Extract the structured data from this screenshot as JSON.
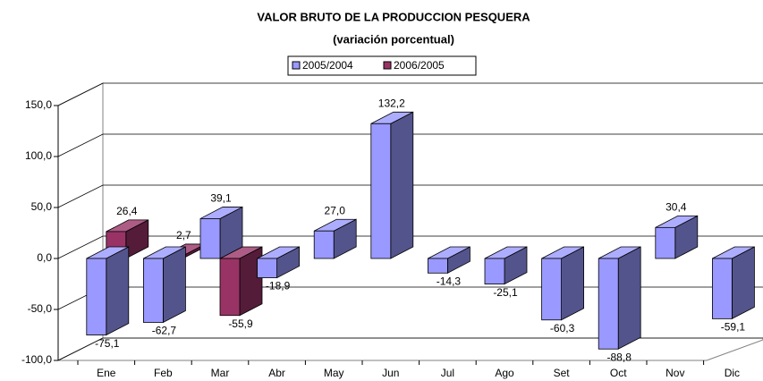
{
  "chart_data": {
    "type": "bar3d",
    "title": "VALOR BRUTO DE LA PRODUCCION PESQUERA",
    "subtitle": "(variación porcentual)",
    "categories": [
      "Ene",
      "Feb",
      "Mar",
      "Abr",
      "May",
      "Jun",
      "Jul",
      "Ago",
      "Set",
      "Oct",
      "Nov",
      "Dic"
    ],
    "series": [
      {
        "name": "2005/2004",
        "color": "#9999ff",
        "values": [
          -75.1,
          -62.7,
          39.1,
          -18.9,
          27.0,
          132.2,
          -14.3,
          -25.1,
          -60.3,
          -88.8,
          30.4,
          -59.1
        ],
        "value_labels": [
          "-75,1",
          "-62,7",
          "39,1",
          "-18,9",
          "27,0",
          "132,2",
          "-14,3",
          "-25,1",
          "-60,3",
          "-88,8",
          "30,4",
          "-59,1"
        ]
      },
      {
        "name": "2006/2005",
        "color": "#993366",
        "values": [
          26.4,
          2.7,
          -55.9,
          null,
          null,
          null,
          null,
          null,
          null,
          null,
          null,
          null
        ],
        "value_labels": [
          "26,4",
          "2,7",
          "-55,9",
          null,
          null,
          null,
          null,
          null,
          null,
          null,
          null,
          null
        ]
      }
    ],
    "ylim": [
      -100,
      150
    ],
    "yticks": [
      {
        "value": -100,
        "label": "-100,0"
      },
      {
        "value": -50,
        "label": "-50,0"
      },
      {
        "value": 0,
        "label": "0,0"
      },
      {
        "value": 50,
        "label": "50,0"
      },
      {
        "value": 100,
        "label": "100,0"
      },
      {
        "value": 150,
        "label": "150,0"
      }
    ],
    "grid": true,
    "legend": "top"
  }
}
